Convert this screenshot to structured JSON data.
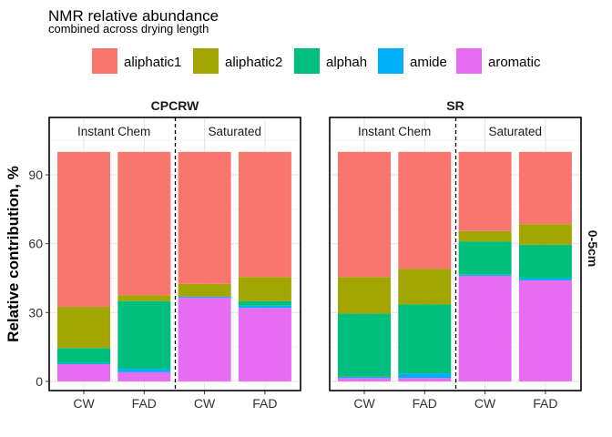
{
  "chart_data": {
    "type": "bar",
    "stacked": true,
    "title": "NMR relative abundance",
    "subtitle": "combined across drying length",
    "ylabel": "Relative contribution, %",
    "ylim": [
      -4,
      115
    ],
    "yticks": [
      0,
      30,
      60,
      90
    ],
    "legend_position": "top",
    "grid": true,
    "series": [
      {
        "name": "aliphatic1",
        "color": "#F8766D"
      },
      {
        "name": "aliphatic2",
        "color": "#A3A500"
      },
      {
        "name": "alphah",
        "color": "#00BF7D"
      },
      {
        "name": "amide",
        "color": "#00B0F6"
      },
      {
        "name": "aromatic",
        "color": "#E76BF3"
      }
    ],
    "row_strip": "0-5cm",
    "panels": [
      {
        "strip": "CPCRW",
        "groups": [
          "Instant Chem",
          "Saturated"
        ],
        "bars": [
          {
            "x": "CW",
            "group": "Instant Chem",
            "values": {
              "aromatic": 7.5,
              "amide": 0.5,
              "alphah": 6.5,
              "aliphatic2": 18,
              "aliphatic1": 67.5
            }
          },
          {
            "x": "FAD",
            "group": "Instant Chem",
            "values": {
              "aromatic": 4,
              "amide": 1.5,
              "alphah": 29.5,
              "aliphatic2": 2.5,
              "aliphatic1": 62.5
            }
          },
          {
            "x": "CW",
            "group": "Saturated",
            "values": {
              "aromatic": 36.5,
              "amide": 0.5,
              "alphah": 0,
              "aliphatic2": 5.5,
              "aliphatic1": 57.5
            }
          },
          {
            "x": "FAD",
            "group": "Saturated",
            "values": {
              "aromatic": 32,
              "amide": 1,
              "alphah": 2,
              "aliphatic2": 10.5,
              "aliphatic1": 54.5
            }
          }
        ]
      },
      {
        "strip": "SR",
        "groups": [
          "Instant Chem",
          "Saturated"
        ],
        "bars": [
          {
            "x": "CW",
            "group": "Instant Chem",
            "values": {
              "aromatic": 1.5,
              "amide": 0.5,
              "alphah": 27.5,
              "aliphatic2": 16,
              "aliphatic1": 54.5
            }
          },
          {
            "x": "FAD",
            "group": "Instant Chem",
            "values": {
              "aromatic": 1.5,
              "amide": 2,
              "alphah": 30,
              "aliphatic2": 15.5,
              "aliphatic1": 51
            }
          },
          {
            "x": "CW",
            "group": "Saturated",
            "values": {
              "aromatic": 46,
              "amide": 0.5,
              "alphah": 14.5,
              "aliphatic2": 4.5,
              "aliphatic1": 34.5
            }
          },
          {
            "x": "FAD",
            "group": "Saturated",
            "values": {
              "aromatic": 44,
              "amide": 1,
              "alphah": 14.5,
              "aliphatic2": 9,
              "aliphatic1": 31.5
            }
          }
        ]
      }
    ]
  }
}
